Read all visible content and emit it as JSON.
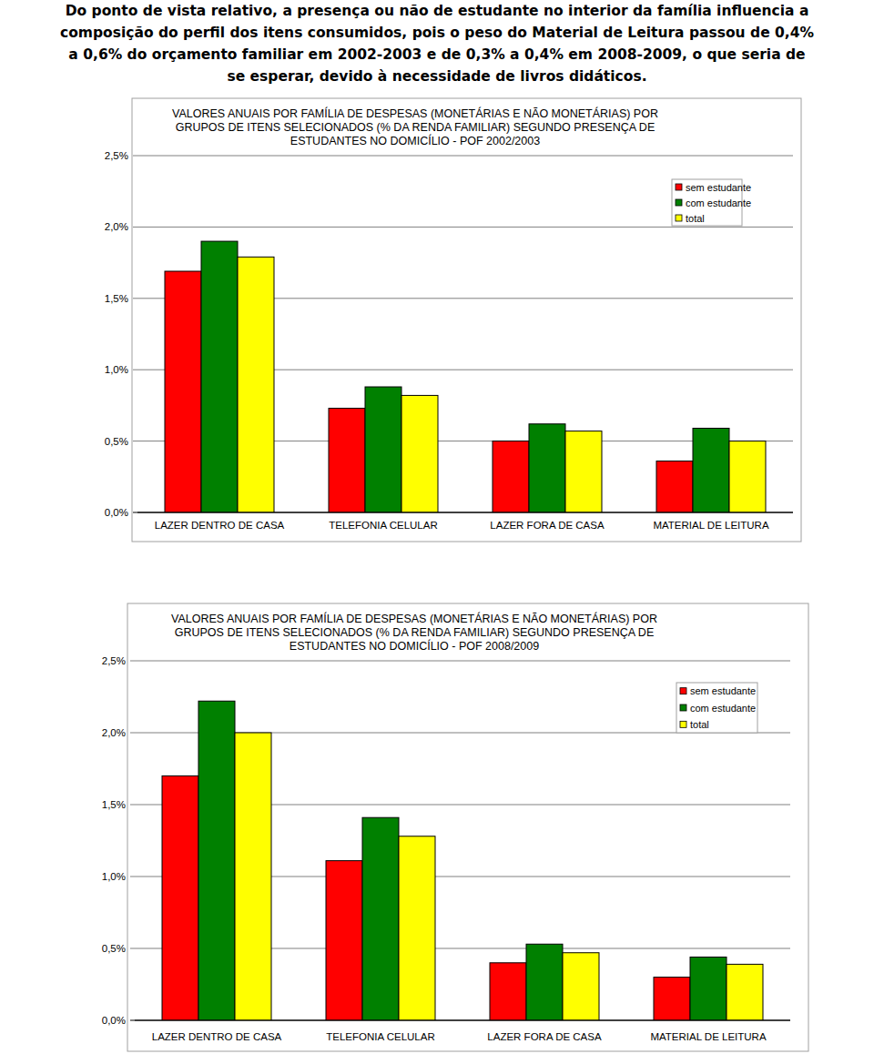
{
  "text": [
    "Do ponto de vista relativo, a presença ou não de estudante no interior da família influencia a",
    "composição do perfil dos itens consumidos, pois o peso do Material de Leitura passou de 0,4%",
    "a 0,6% do orçamento familiar em 2002-2003 e de 0,3% a 0,4% em 2008-2009, o que seria de",
    "se esperar, devido à necessidade de livros didáticos."
  ],
  "chart_data": [
    {
      "type": "bar",
      "title": [
        "VALORES ANUAIS POR FAMÍLIA DE DESPESAS (MONETÁRIAS E NÃO MONETÁRIAS) POR",
        "GRUPOS DE ITENS SELECIONADOS (% DA RENDA FAMILIAR) SEGUNDO PRESENÇA DE",
        "ESTUDANTES NO DOMICÍLIO - POF 2002/2003"
      ],
      "categories": [
        "LAZER DENTRO DE CASA",
        "TELEFONIA CELULAR",
        "LAZER FORA DE CASA",
        "MATERIAL DE LEITURA"
      ],
      "series": [
        {
          "name": "sem estudante",
          "color": "#ff0000",
          "values": [
            1.69,
            0.73,
            0.5,
            0.36
          ]
        },
        {
          "name": "com estudante",
          "color": "#008000",
          "values": [
            1.9,
            0.88,
            0.62,
            0.59
          ]
        },
        {
          "name": "total",
          "color": "#ffff00",
          "values": [
            1.79,
            0.82,
            0.57,
            0.5
          ]
        }
      ],
      "ylim": [
        0,
        2.5
      ],
      "yticks": [
        {
          "value": 0,
          "label": "0,0%"
        },
        {
          "value": 0.5,
          "label": "0,5%"
        },
        {
          "value": 1,
          "label": "1,0%"
        },
        {
          "value": 1.5,
          "label": "1,5%"
        },
        {
          "value": 2,
          "label": "2,0%"
        },
        {
          "value": 2.5,
          "label": "2,5%"
        }
      ],
      "grid": true,
      "legend": "top-right"
    },
    {
      "type": "bar",
      "title": [
        "VALORES ANUAIS POR FAMÍLIA DE DESPESAS (MONETÁRIAS E NÃO MONETÁRIAS) POR",
        "GRUPOS DE ITENS SELECIONADOS (% DA RENDA FAMILIAR) SEGUNDO PRESENÇA DE",
        "ESTUDANTES NO DOMICÍLIO - POF 2008/2009"
      ],
      "categories": [
        "LAZER DENTRO DE CASA",
        "TELEFONIA CELULAR",
        "LAZER FORA DE CASA",
        "MATERIAL DE LEITURA"
      ],
      "series": [
        {
          "name": "sem estudante",
          "color": "#ff0000",
          "values": [
            1.7,
            1.11,
            0.4,
            0.3
          ]
        },
        {
          "name": "com estudante",
          "color": "#008000",
          "values": [
            2.22,
            1.41,
            0.53,
            0.44
          ]
        },
        {
          "name": "total",
          "color": "#ffff00",
          "values": [
            2.0,
            1.28,
            0.47,
            0.39
          ]
        }
      ],
      "ylim": [
        0,
        2.5
      ],
      "yticks": [
        {
          "value": 0,
          "label": "0,0%"
        },
        {
          "value": 0.5,
          "label": "0,5%"
        },
        {
          "value": 1,
          "label": "1,0%"
        },
        {
          "value": 1.5,
          "label": "1,5%"
        },
        {
          "value": 2,
          "label": "2,0%"
        },
        {
          "value": 2.5,
          "label": "2,5%"
        }
      ],
      "grid": true,
      "legend": "top-right"
    }
  ]
}
